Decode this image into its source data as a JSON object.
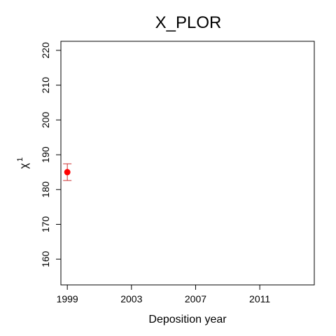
{
  "chart_data": {
    "type": "scatter",
    "title": "X_PLOR",
    "xlabel": "Deposition year",
    "ylabel": "χ",
    "ylabel_superscript": "1",
    "xlim": [
      1998.6,
      2014.4
    ],
    "ylim": [
      152.6,
      222.6
    ],
    "x_ticks": [
      1999,
      2003,
      2007,
      2011
    ],
    "y_ticks": [
      160,
      170,
      180,
      190,
      200,
      210,
      220
    ],
    "grid": false,
    "legend": "none",
    "series": [
      {
        "x": [
          1999
        ],
        "y": [
          185
        ],
        "y_err_low": [
          182.6
        ],
        "y_err_high": [
          187.4
        ],
        "color": "#ff0000",
        "errorbar_color": "#cc3333"
      }
    ]
  }
}
